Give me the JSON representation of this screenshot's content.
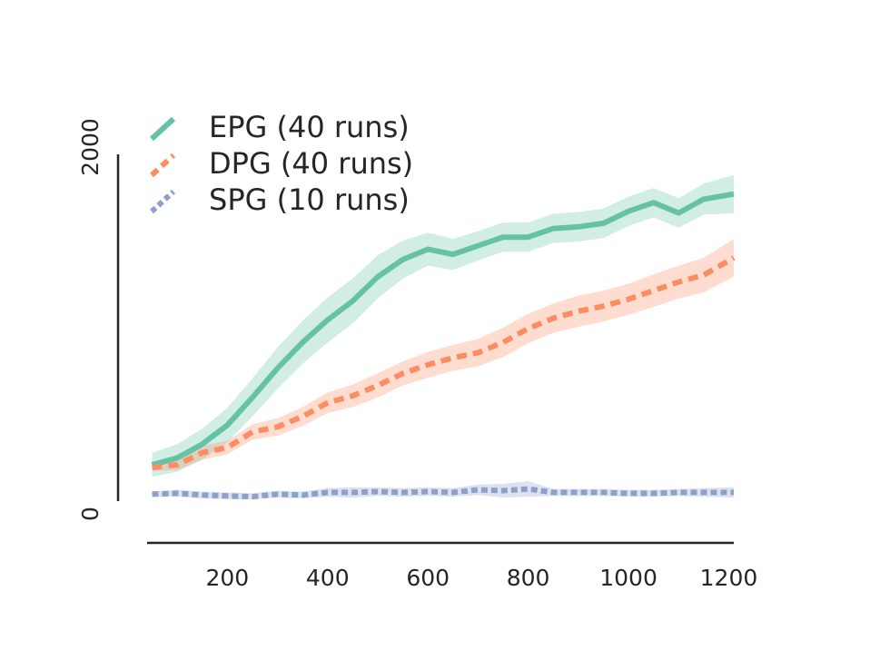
{
  "chart_data": {
    "type": "line",
    "title": "",
    "xlabel": "",
    "ylabel": "",
    "xlim": [
      40,
      1210
    ],
    "ylim": [
      0,
      2000
    ],
    "xticks": [
      "200",
      "400",
      "600",
      "800",
      "1000",
      "1200"
    ],
    "yticks": [
      "0",
      "2000"
    ],
    "legend_position": "top-left",
    "x": [
      50,
      100,
      150,
      200,
      250,
      300,
      350,
      400,
      450,
      500,
      550,
      600,
      650,
      700,
      750,
      800,
      850,
      900,
      950,
      1000,
      1050,
      1100,
      1150,
      1210
    ],
    "series": [
      {
        "name": "EPG (40 runs)",
        "style": "solid",
        "color": "#66c2a5",
        "values": [
          200,
          240,
          320,
          430,
          590,
          760,
          910,
          1040,
          1150,
          1290,
          1390,
          1450,
          1420,
          1470,
          1520,
          1520,
          1570,
          1580,
          1600,
          1670,
          1720,
          1660,
          1740,
          1770
        ],
        "band": [
          70,
          80,
          90,
          100,
          110,
          120,
          125,
          130,
          130,
          125,
          110,
          95,
          90,
          85,
          85,
          85,
          85,
          85,
          85,
          85,
          85,
          85,
          90,
          110
        ]
      },
      {
        "name": "DPG (40 runs)",
        "style": "dashed",
        "color": "#fc8d62",
        "values": [
          185,
          200,
          270,
          300,
          390,
          420,
          480,
          560,
          600,
          660,
          730,
          780,
          820,
          850,
          910,
          990,
          1050,
          1090,
          1120,
          1160,
          1210,
          1260,
          1300,
          1400
        ],
        "band": [
          20,
          30,
          40,
          40,
          45,
          50,
          55,
          60,
          65,
          70,
          70,
          75,
          75,
          80,
          85,
          85,
          85,
          90,
          90,
          90,
          95,
          95,
          100,
          110
        ]
      },
      {
        "name": "SPG (10 runs)",
        "style": "dotted",
        "color": "#8da0cb",
        "values": [
          30,
          35,
          25,
          20,
          15,
          30,
          25,
          40,
          40,
          45,
          40,
          45,
          40,
          55,
          50,
          60,
          40,
          40,
          40,
          35,
          35,
          40,
          40,
          40
        ],
        "band": [
          15,
          20,
          20,
          20,
          20,
          20,
          20,
          25,
          30,
          25,
          25,
          25,
          25,
          30,
          40,
          45,
          20,
          20,
          20,
          20,
          20,
          20,
          25,
          30
        ]
      }
    ]
  }
}
